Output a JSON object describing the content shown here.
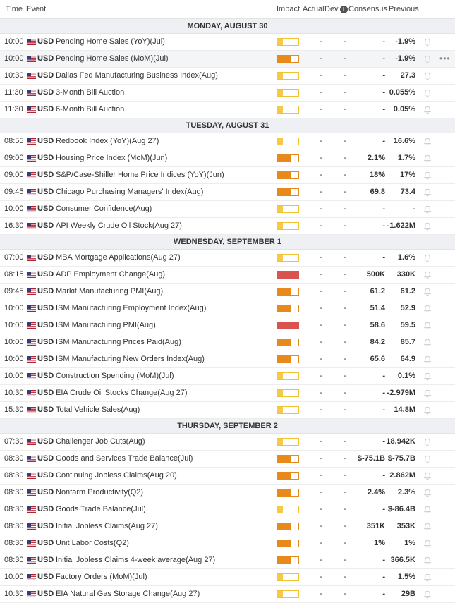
{
  "header": {
    "time": "Time",
    "event": "Event",
    "impact": "Impact",
    "actual": "Actual",
    "dev": "Dev",
    "consensus": "Consensus",
    "previous": "Previous"
  },
  "days": [
    {
      "label": "MONDAY, AUGUST 30",
      "rows": [
        {
          "time": "10:00",
          "cur": "USD",
          "event": "Pending Home Sales (YoY)(Jul)",
          "impact": "low",
          "actual": "-",
          "dev": "-",
          "cons": "-",
          "prev": "-1.9%"
        },
        {
          "time": "10:00",
          "cur": "USD",
          "event": "Pending Home Sales (MoM)(Jul)",
          "impact": "med",
          "actual": "-",
          "dev": "-",
          "cons": "-",
          "prev": "-1.9%",
          "hl": true
        },
        {
          "time": "10:30",
          "cur": "USD",
          "event": "Dallas Fed Manufacturing Business Index(Aug)",
          "impact": "low",
          "actual": "-",
          "dev": "-",
          "cons": "-",
          "prev": "27.3"
        },
        {
          "time": "11:30",
          "cur": "USD",
          "event": "3-Month Bill Auction",
          "impact": "low",
          "actual": "-",
          "dev": "-",
          "cons": "-",
          "prev": "0.055%"
        },
        {
          "time": "11:30",
          "cur": "USD",
          "event": "6-Month Bill Auction",
          "impact": "low",
          "actual": "-",
          "dev": "-",
          "cons": "-",
          "prev": "0.05%"
        }
      ]
    },
    {
      "label": "TUESDAY, AUGUST 31",
      "rows": [
        {
          "time": "08:55",
          "cur": "USD",
          "event": "Redbook Index (YoY)(Aug 27)",
          "impact": "low",
          "actual": "-",
          "dev": "-",
          "cons": "-",
          "prev": "16.6%"
        },
        {
          "time": "09:00",
          "cur": "USD",
          "event": "Housing Price Index (MoM)(Jun)",
          "impact": "med",
          "actual": "-",
          "dev": "-",
          "cons": "2.1%",
          "prev": "1.7%"
        },
        {
          "time": "09:00",
          "cur": "USD",
          "event": "S&P/Case-Shiller Home Price Indices (YoY)(Jun)",
          "impact": "med",
          "actual": "-",
          "dev": "-",
          "cons": "18%",
          "prev": "17%"
        },
        {
          "time": "09:45",
          "cur": "USD",
          "event": "Chicago Purchasing Managers' Index(Aug)",
          "impact": "med",
          "actual": "-",
          "dev": "-",
          "cons": "69.8",
          "prev": "73.4"
        },
        {
          "time": "10:00",
          "cur": "USD",
          "event": "Consumer Confidence(Aug)",
          "impact": "low",
          "actual": "-",
          "dev": "-",
          "cons": "-",
          "prev": "-"
        },
        {
          "time": "16:30",
          "cur": "USD",
          "event": "API Weekly Crude Oil Stock(Aug 27)",
          "impact": "low",
          "actual": "-",
          "dev": "-",
          "cons": "-",
          "prev": "-1.622M"
        }
      ]
    },
    {
      "label": "WEDNESDAY, SEPTEMBER 1",
      "rows": [
        {
          "time": "07:00",
          "cur": "USD",
          "event": "MBA Mortgage Applications(Aug 27)",
          "impact": "low",
          "actual": "-",
          "dev": "-",
          "cons": "-",
          "prev": "1.6%"
        },
        {
          "time": "08:15",
          "cur": "USD",
          "event": "ADP Employment Change(Aug)",
          "impact": "high",
          "actual": "-",
          "dev": "-",
          "cons": "500K",
          "prev": "330K"
        },
        {
          "time": "09:45",
          "cur": "USD",
          "event": "Markit Manufacturing PMI(Aug)",
          "impact": "med",
          "actual": "-",
          "dev": "-",
          "cons": "61.2",
          "prev": "61.2"
        },
        {
          "time": "10:00",
          "cur": "USD",
          "event": "ISM Manufacturing Employment Index(Aug)",
          "impact": "med",
          "actual": "-",
          "dev": "-",
          "cons": "51.4",
          "prev": "52.9"
        },
        {
          "time": "10:00",
          "cur": "USD",
          "event": "ISM Manufacturing PMI(Aug)",
          "impact": "high",
          "actual": "-",
          "dev": "-",
          "cons": "58.6",
          "prev": "59.5"
        },
        {
          "time": "10:00",
          "cur": "USD",
          "event": "ISM Manufacturing Prices Paid(Aug)",
          "impact": "med",
          "actual": "-",
          "dev": "-",
          "cons": "84.2",
          "prev": "85.7"
        },
        {
          "time": "10:00",
          "cur": "USD",
          "event": "ISM Manufacturing New Orders Index(Aug)",
          "impact": "med",
          "actual": "-",
          "dev": "-",
          "cons": "65.6",
          "prev": "64.9"
        },
        {
          "time": "10:00",
          "cur": "USD",
          "event": "Construction Spending (MoM)(Jul)",
          "impact": "low",
          "actual": "-",
          "dev": "-",
          "cons": "-",
          "prev": "0.1%"
        },
        {
          "time": "10:30",
          "cur": "USD",
          "event": "EIA Crude Oil Stocks Change(Aug 27)",
          "impact": "low",
          "actual": "-",
          "dev": "-",
          "cons": "-",
          "prev": "-2.979M"
        },
        {
          "time": "15:30",
          "cur": "USD",
          "event": "Total Vehicle Sales(Aug)",
          "impact": "low",
          "actual": "-",
          "dev": "-",
          "cons": "-",
          "prev": "14.8M"
        }
      ]
    },
    {
      "label": "THURSDAY, SEPTEMBER 2",
      "rows": [
        {
          "time": "07:30",
          "cur": "USD",
          "event": "Challenger Job Cuts(Aug)",
          "impact": "low",
          "actual": "-",
          "dev": "-",
          "cons": "-",
          "prev": "18.942K"
        },
        {
          "time": "08:30",
          "cur": "USD",
          "event": "Goods and Services Trade Balance(Jul)",
          "impact": "med",
          "actual": "-",
          "dev": "-",
          "cons": "$-75.1B",
          "prev": "$-75.7B"
        },
        {
          "time": "08:30",
          "cur": "USD",
          "event": "Continuing Jobless Claims(Aug 20)",
          "impact": "med",
          "actual": "-",
          "dev": "-",
          "cons": "-",
          "prev": "2.862M"
        },
        {
          "time": "08:30",
          "cur": "USD",
          "event": "Nonfarm Productivity(Q2)",
          "impact": "med",
          "actual": "-",
          "dev": "-",
          "cons": "2.4%",
          "prev": "2.3%"
        },
        {
          "time": "08:30",
          "cur": "USD",
          "event": "Goods Trade Balance(Jul)",
          "impact": "low",
          "actual": "-",
          "dev": "-",
          "cons": "-",
          "prev": "$-86.4B"
        },
        {
          "time": "08:30",
          "cur": "USD",
          "event": "Initial Jobless Claims(Aug 27)",
          "impact": "med",
          "actual": "-",
          "dev": "-",
          "cons": "351K",
          "prev": "353K"
        },
        {
          "time": "08:30",
          "cur": "USD",
          "event": "Unit Labor Costs(Q2)",
          "impact": "med",
          "actual": "-",
          "dev": "-",
          "cons": "1%",
          "prev": "1%"
        },
        {
          "time": "08:30",
          "cur": "USD",
          "event": "Initial Jobless Claims 4-week average(Aug 27)",
          "impact": "med",
          "actual": "-",
          "dev": "-",
          "cons": "-",
          "prev": "366.5K"
        },
        {
          "time": "10:00",
          "cur": "USD",
          "event": "Factory Orders (MoM)(Jul)",
          "impact": "low",
          "actual": "-",
          "dev": "-",
          "cons": "-",
          "prev": "1.5%"
        },
        {
          "time": "10:30",
          "cur": "USD",
          "event": "EIA Natural Gas Storage Change(Aug 27)",
          "impact": "low",
          "actual": "-",
          "dev": "-",
          "cons": "-",
          "prev": "29B"
        }
      ]
    }
  ],
  "icons": {
    "flag": "us-flag-icon",
    "bell": "bell-icon",
    "more": "more-icon",
    "info": "info-icon"
  },
  "more_label": "•••",
  "info_label": "i",
  "colors": {
    "low": "#f7c948",
    "medium": "#e8891b",
    "high": "#d9534f"
  }
}
